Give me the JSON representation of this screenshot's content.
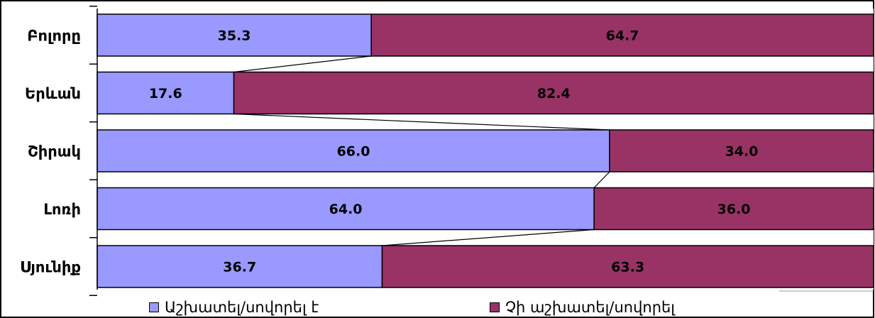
{
  "chart_data": {
    "type": "bar",
    "orientation": "horizontal",
    "stacked": "percent",
    "categories": [
      "Բոլորը",
      "Երևան",
      "Շիրակ",
      "Լոռի",
      "Սյունիք"
    ],
    "series": [
      {
        "name": "Աշխատել/սովորել է",
        "values": [
          35.3,
          17.6,
          66.0,
          64.0,
          36.7
        ],
        "color": "#9999ff"
      },
      {
        "name": "Չի աշխատել/սովորել",
        "values": [
          64.7,
          82.4,
          34.0,
          36.0,
          63.3
        ],
        "color": "#993366"
      }
    ],
    "data_labels": [
      [
        "35.3",
        "17.6",
        "66.0",
        "64.0",
        "36.7"
      ],
      [
        "64.7",
        "82.4",
        "34.0",
        "36.0",
        "63.3"
      ]
    ],
    "xlim": [
      0,
      100
    ],
    "series_lines": true,
    "grid": false,
    "legend_position": "bottom"
  }
}
